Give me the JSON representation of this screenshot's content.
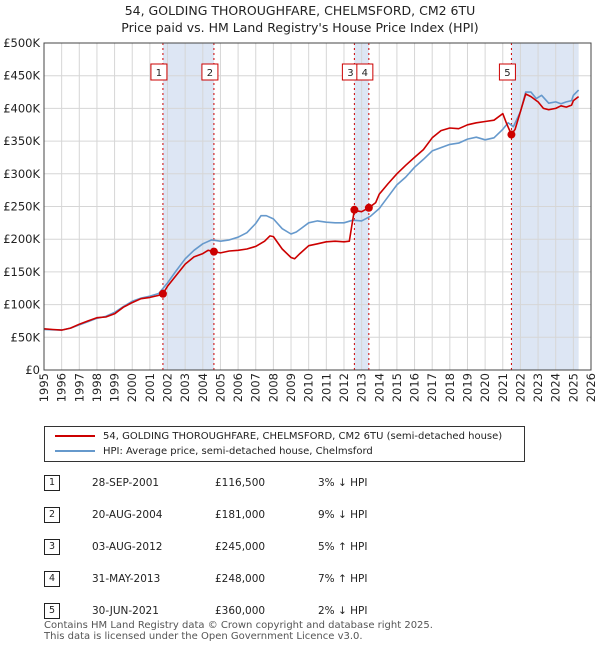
{
  "title_line1": "54, GOLDING THOROUGHFARE, CHELMSFORD, CM2 6TU",
  "title_line2": "Price paid vs. HM Land Registry's House Price Index (HPI)",
  "colors": {
    "property": "#cc0000",
    "hpi": "#6699cc",
    "band": "#dde6f4",
    "grid": "#d6d6d6",
    "vline": "#cc0000"
  },
  "chart_data": {
    "type": "line",
    "xlim": [
      1995,
      2026
    ],
    "ylim": [
      0,
      500000
    ],
    "yticks": [
      0,
      50000,
      100000,
      150000,
      200000,
      250000,
      300000,
      350000,
      400000,
      450000,
      500000
    ],
    "ytick_labels": [
      "£0",
      "£50K",
      "£100K",
      "£150K",
      "£200K",
      "£250K",
      "£300K",
      "£350K",
      "£400K",
      "£450K",
      "£500K"
    ],
    "xticks": [
      1995,
      1996,
      1997,
      1998,
      1999,
      2000,
      2001,
      2002,
      2003,
      2004,
      2005,
      2006,
      2007,
      2008,
      2009,
      2010,
      2011,
      2012,
      2013,
      2014,
      2015,
      2016,
      2017,
      2018,
      2019,
      2020,
      2021,
      2022,
      2023,
      2024,
      2025,
      2026
    ],
    "xtick_labels": [
      "1995",
      "1996",
      "1997",
      "1998",
      "1999",
      "2000",
      "2001",
      "2002",
      "2003",
      "2004",
      "2005",
      "2006",
      "2007",
      "2008",
      "2009",
      "2010",
      "2011",
      "2012",
      "2013",
      "2014",
      "2015",
      "2016",
      "2017",
      "2018",
      "2019",
      "2020",
      "2021",
      "2022",
      "2023",
      "2024",
      "2025",
      "2026"
    ],
    "shaded_ranges": [
      [
        2001.74,
        2004.63
      ],
      [
        2012.59,
        2013.41
      ],
      [
        2021.49,
        2025.3
      ]
    ],
    "series": [
      {
        "name": "54, GOLDING THOROUGHFARE, CHELMSFORD, CM2 6TU (semi-detached house)",
        "color": "#cc0000",
        "x": [
          1995,
          1995.5,
          1996,
          1996.5,
          1997,
          1997.5,
          1998,
          1998.5,
          1999,
          1999.5,
          2000,
          2000.5,
          2001,
          2001.5,
          2001.74,
          2002,
          2002.5,
          2003,
          2003.5,
          2004,
          2004.3,
          2004.63,
          2005,
          2005.5,
          2006,
          2006.5,
          2007,
          2007.5,
          2007.8,
          2008,
          2008.5,
          2009,
          2009.2,
          2009.5,
          2010,
          2010.5,
          2011,
          2011.5,
          2012,
          2012.3,
          2012.59,
          2012.8,
          2013,
          2013.41,
          2013.8,
          2014,
          2014.5,
          2015,
          2015.5,
          2016,
          2016.5,
          2017,
          2017.5,
          2018,
          2018.5,
          2019,
          2019.5,
          2020,
          2020.5,
          2021,
          2021.2,
          2021.49,
          2021.7,
          2022,
          2022.3,
          2022.6,
          2022.9,
          2023,
          2023.3,
          2023.6,
          2024,
          2024.3,
          2024.6,
          2024.9,
          2025,
          2025.3
        ],
        "values": [
          63000,
          62000,
          61000,
          64000,
          70000,
          75000,
          80000,
          81000,
          86000,
          96000,
          103000,
          109000,
          111000,
          114000,
          116500,
          128000,
          145000,
          162000,
          173000,
          178000,
          183000,
          181000,
          179000,
          182000,
          183000,
          185000,
          189000,
          197000,
          205000,
          204000,
          185000,
          172000,
          170000,
          178000,
          190000,
          193000,
          196000,
          197000,
          196000,
          197000,
          245000,
          243000,
          242000,
          248000,
          256000,
          269000,
          285000,
          300000,
          313000,
          325000,
          337000,
          355000,
          366000,
          370000,
          369000,
          375000,
          378000,
          380000,
          382000,
          392000,
          378000,
          360000,
          368000,
          395000,
          422000,
          418000,
          412000,
          410000,
          400000,
          398000,
          400000,
          404000,
          402000,
          405000,
          412000,
          418000
        ]
      },
      {
        "name": "HPI: Average price, semi-detached house, Chelmsford",
        "color": "#6699cc",
        "x": [
          1995,
          1995.5,
          1996,
          1996.5,
          1997,
          1997.5,
          1998,
          1998.5,
          1999,
          1999.5,
          2000,
          2000.5,
          2001,
          2001.5,
          2002,
          2002.5,
          2003,
          2003.5,
          2004,
          2004.5,
          2005,
          2005.5,
          2006,
          2006.5,
          2007,
          2007.3,
          2007.6,
          2008,
          2008.5,
          2009,
          2009.3,
          2009.6,
          2010,
          2010.5,
          2011,
          2011.5,
          2012,
          2012.5,
          2013,
          2013.5,
          2014,
          2014.5,
          2015,
          2015.5,
          2016,
          2016.5,
          2017,
          2017.5,
          2018,
          2018.5,
          2019,
          2019.5,
          2020,
          2020.5,
          2021,
          2021.3,
          2021.6,
          2022,
          2022.3,
          2022.6,
          2022.9,
          2023.2,
          2023.6,
          2024,
          2024.3,
          2024.6,
          2024.9,
          2025,
          2025.3
        ],
        "values": [
          62000,
          61500,
          61000,
          64000,
          69000,
          74000,
          79000,
          82000,
          88000,
          97000,
          105000,
          110000,
          113000,
          117000,
          133000,
          152000,
          170000,
          183000,
          193000,
          199000,
          197000,
          199000,
          203000,
          210000,
          224000,
          236000,
          236000,
          231000,
          216000,
          208000,
          211000,
          217000,
          225000,
          228000,
          226000,
          225000,
          225000,
          229000,
          228000,
          235000,
          247000,
          265000,
          283000,
          295000,
          310000,
          322000,
          335000,
          340000,
          345000,
          347000,
          353000,
          356000,
          352000,
          355000,
          368000,
          378000,
          372000,
          395000,
          425000,
          425000,
          415000,
          420000,
          408000,
          410000,
          407000,
          410000,
          412000,
          420000,
          428000
        ]
      }
    ],
    "sales": [
      {
        "n": "1",
        "x": 2001.74,
        "y": 116500
      },
      {
        "n": "2",
        "x": 2004.63,
        "y": 181000
      },
      {
        "n": "3",
        "x": 2012.59,
        "y": 245000
      },
      {
        "n": "4",
        "x": 2013.41,
        "y": 248000
      },
      {
        "n": "5",
        "x": 2021.49,
        "y": 360000
      }
    ]
  },
  "legend": {
    "property": "54, GOLDING THOROUGHFARE, CHELMSFORD, CM2 6TU (semi-detached house)",
    "hpi": "HPI: Average price, semi-detached house, Chelmsford"
  },
  "sales_table": [
    {
      "n": "1",
      "date": "28-SEP-2001",
      "price": "£116,500",
      "diff": "3% ↓ HPI"
    },
    {
      "n": "2",
      "date": "20-AUG-2004",
      "price": "£181,000",
      "diff": "9% ↓ HPI"
    },
    {
      "n": "3",
      "date": "03-AUG-2012",
      "price": "£245,000",
      "diff": "5% ↑ HPI"
    },
    {
      "n": "4",
      "date": "31-MAY-2013",
      "price": "£248,000",
      "diff": "7% ↑ HPI"
    },
    {
      "n": "5",
      "date": "30-JUN-2021",
      "price": "£360,000",
      "diff": "2% ↓ HPI"
    }
  ],
  "footer": {
    "line1": "Contains HM Land Registry data © Crown copyright and database right 2025.",
    "line2": "This data is licensed under the Open Government Licence v3.0."
  }
}
